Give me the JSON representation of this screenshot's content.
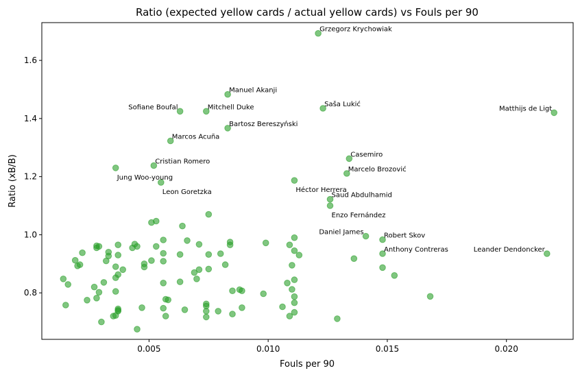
{
  "chart_data": {
    "type": "scatter",
    "title": "Ratio (expected yellow cards / actual yellow cards) vs Fouls per 90",
    "xlabel": "Fouls per 90",
    "ylabel": "Ratio (xB/B)",
    "xlim": [
      0.0005,
      0.0228
    ],
    "ylim": [
      0.64,
      1.73
    ],
    "xticks": [
      0.005,
      0.01,
      0.015,
      0.02
    ],
    "xtick_labels": [
      "0.005",
      "0.010",
      "0.015",
      "0.020"
    ],
    "yticks": [
      0.8,
      1.0,
      1.2,
      1.4,
      1.6
    ],
    "ytick_labels": [
      "0.8",
      "1.0",
      "1.2",
      "1.4",
      "1.6"
    ],
    "grid": false,
    "marker_color": "#2ca02c",
    "marker_opacity": 0.6,
    "labeled_points": [
      {
        "x": 0.0121,
        "y": 1.693,
        "label": "Grzegorz Krychowiak",
        "align": "start"
      },
      {
        "x": 0.0083,
        "y": 1.483,
        "label": "Manuel Akanji",
        "align": "start"
      },
      {
        "x": 0.0123,
        "y": 1.435,
        "label": "Saša Lukić",
        "align": "start"
      },
      {
        "x": 0.0063,
        "y": 1.425,
        "label": "Sofiane Boufal",
        "align": "end"
      },
      {
        "x": 0.0074,
        "y": 1.425,
        "label": "Mitchell Duke",
        "align": "start"
      },
      {
        "x": 0.022,
        "y": 1.42,
        "label": "Matthijs de Ligt",
        "align": "end"
      },
      {
        "x": 0.0083,
        "y": 1.367,
        "label": "Bartosz Bereszyński",
        "align": "start"
      },
      {
        "x": 0.0059,
        "y": 1.323,
        "label": "Marcos Acuña",
        "align": "start"
      },
      {
        "x": 0.0134,
        "y": 1.262,
        "label": "Casemiro",
        "align": "start"
      },
      {
        "x": 0.0052,
        "y": 1.238,
        "label": "Cristian Romero",
        "align": "start"
      },
      {
        "x": 0.0036,
        "y": 1.23,
        "label": "Jung Woo-young",
        "align": "start",
        "below": true
      },
      {
        "x": 0.0133,
        "y": 1.211,
        "label": "Marcelo Brozović",
        "align": "start"
      },
      {
        "x": 0.0111,
        "y": 1.187,
        "label": "Héctor Herrera",
        "align": "start",
        "below": true
      },
      {
        "x": 0.0055,
        "y": 1.18,
        "label": "Leon Goretzka",
        "align": "start",
        "below": true
      },
      {
        "x": 0.0126,
        "y": 1.122,
        "label": "Saud Abdulhamid",
        "align": "start"
      },
      {
        "x": 0.0126,
        "y": 1.1,
        "label": "Enzo Fernández",
        "align": "start",
        "below": true
      },
      {
        "x": 0.0141,
        "y": 0.995,
        "label": "Daniel James",
        "align": "end"
      },
      {
        "x": 0.0148,
        "y": 0.983,
        "label": "Robert Skov",
        "align": "start"
      },
      {
        "x": 0.0148,
        "y": 0.935,
        "label": "Anthony Contreras",
        "align": "start"
      },
      {
        "x": 0.0217,
        "y": 0.935,
        "label": "Leander Dendoncker",
        "align": "end"
      }
    ],
    "points": [
      {
        "x": 0.0121,
        "y": 1.693
      },
      {
        "x": 0.0083,
        "y": 1.483
      },
      {
        "x": 0.0123,
        "y": 1.435
      },
      {
        "x": 0.0063,
        "y": 1.425
      },
      {
        "x": 0.0074,
        "y": 1.425
      },
      {
        "x": 0.022,
        "y": 1.42
      },
      {
        "x": 0.0083,
        "y": 1.367
      },
      {
        "x": 0.0059,
        "y": 1.323
      },
      {
        "x": 0.0134,
        "y": 1.262
      },
      {
        "x": 0.0052,
        "y": 1.238
      },
      {
        "x": 0.0036,
        "y": 1.23
      },
      {
        "x": 0.0133,
        "y": 1.211
      },
      {
        "x": 0.0111,
        "y": 1.187
      },
      {
        "x": 0.0055,
        "y": 1.18
      },
      {
        "x": 0.0126,
        "y": 1.122
      },
      {
        "x": 0.0126,
        "y": 1.1
      },
      {
        "x": 0.0141,
        "y": 0.995
      },
      {
        "x": 0.0148,
        "y": 0.983
      },
      {
        "x": 0.0148,
        "y": 0.935
      },
      {
        "x": 0.0217,
        "y": 0.935
      },
      {
        "x": 0.0075,
        "y": 1.07
      },
      {
        "x": 0.0053,
        "y": 1.047
      },
      {
        "x": 0.0051,
        "y": 1.042
      },
      {
        "x": 0.0064,
        "y": 1.03
      },
      {
        "x": 0.0111,
        "y": 0.99
      },
      {
        "x": 0.0056,
        "y": 0.982
      },
      {
        "x": 0.0066,
        "y": 0.98
      },
      {
        "x": 0.0084,
        "y": 0.975
      },
      {
        "x": 0.0099,
        "y": 0.972
      },
      {
        "x": 0.0084,
        "y": 0.965
      },
      {
        "x": 0.0071,
        "y": 0.967
      },
      {
        "x": 0.0109,
        "y": 0.965
      },
      {
        "x": 0.0037,
        "y": 0.965
      },
      {
        "x": 0.0044,
        "y": 0.968
      },
      {
        "x": 0.0028,
        "y": 0.962
      },
      {
        "x": 0.0029,
        "y": 0.96
      },
      {
        "x": 0.0053,
        "y": 0.96
      },
      {
        "x": 0.0045,
        "y": 0.96
      },
      {
        "x": 0.0043,
        "y": 0.955
      },
      {
        "x": 0.0028,
        "y": 0.955
      },
      {
        "x": 0.0111,
        "y": 0.945
      },
      {
        "x": 0.0022,
        "y": 0.938
      },
      {
        "x": 0.0033,
        "y": 0.94
      },
      {
        "x": 0.0056,
        "y": 0.936
      },
      {
        "x": 0.0063,
        "y": 0.932
      },
      {
        "x": 0.0075,
        "y": 0.932
      },
      {
        "x": 0.008,
        "y": 0.935
      },
      {
        "x": 0.0113,
        "y": 0.93
      },
      {
        "x": 0.0033,
        "y": 0.927
      },
      {
        "x": 0.0037,
        "y": 0.93
      },
      {
        "x": 0.0136,
        "y": 0.918
      },
      {
        "x": 0.0019,
        "y": 0.912
      },
      {
        "x": 0.0032,
        "y": 0.91
      },
      {
        "x": 0.0051,
        "y": 0.911
      },
      {
        "x": 0.0056,
        "y": 0.909
      },
      {
        "x": 0.0021,
        "y": 0.897
      },
      {
        "x": 0.0048,
        "y": 0.9
      },
      {
        "x": 0.0082,
        "y": 0.897
      },
      {
        "x": 0.011,
        "y": 0.895
      },
      {
        "x": 0.002,
        "y": 0.893
      },
      {
        "x": 0.0036,
        "y": 0.89
      },
      {
        "x": 0.0048,
        "y": 0.889
      },
      {
        "x": 0.0148,
        "y": 0.887
      },
      {
        "x": 0.0039,
        "y": 0.88
      },
      {
        "x": 0.0071,
        "y": 0.88
      },
      {
        "x": 0.0075,
        "y": 0.882
      },
      {
        "x": 0.0069,
        "y": 0.87
      },
      {
        "x": 0.0037,
        "y": 0.863
      },
      {
        "x": 0.0153,
        "y": 0.86
      },
      {
        "x": 0.0036,
        "y": 0.852
      },
      {
        "x": 0.0014,
        "y": 0.848
      },
      {
        "x": 0.007,
        "y": 0.848
      },
      {
        "x": 0.0111,
        "y": 0.845
      },
      {
        "x": 0.0031,
        "y": 0.836
      },
      {
        "x": 0.0056,
        "y": 0.834
      },
      {
        "x": 0.0063,
        "y": 0.838
      },
      {
        "x": 0.0108,
        "y": 0.834
      },
      {
        "x": 0.0016,
        "y": 0.829
      },
      {
        "x": 0.0027,
        "y": 0.82
      },
      {
        "x": 0.0085,
        "y": 0.807
      },
      {
        "x": 0.0088,
        "y": 0.811
      },
      {
        "x": 0.0089,
        "y": 0.807
      },
      {
        "x": 0.0036,
        "y": 0.805
      },
      {
        "x": 0.0029,
        "y": 0.802
      },
      {
        "x": 0.011,
        "y": 0.812
      },
      {
        "x": 0.0098,
        "y": 0.797
      },
      {
        "x": 0.0111,
        "y": 0.787
      },
      {
        "x": 0.0168,
        "y": 0.788
      },
      {
        "x": 0.0028,
        "y": 0.782
      },
      {
        "x": 0.0057,
        "y": 0.778
      },
      {
        "x": 0.0058,
        "y": 0.776
      },
      {
        "x": 0.0024,
        "y": 0.775
      },
      {
        "x": 0.0111,
        "y": 0.766
      },
      {
        "x": 0.0074,
        "y": 0.762
      },
      {
        "x": 0.0015,
        "y": 0.758
      },
      {
        "x": 0.0074,
        "y": 0.755
      },
      {
        "x": 0.0106,
        "y": 0.752
      },
      {
        "x": 0.0047,
        "y": 0.749
      },
      {
        "x": 0.0056,
        "y": 0.747
      },
      {
        "x": 0.0089,
        "y": 0.749
      },
      {
        "x": 0.0037,
        "y": 0.745
      },
      {
        "x": 0.0065,
        "y": 0.742
      },
      {
        "x": 0.0037,
        "y": 0.74
      },
      {
        "x": 0.0037,
        "y": 0.737
      },
      {
        "x": 0.0079,
        "y": 0.737
      },
      {
        "x": 0.0111,
        "y": 0.733
      },
      {
        "x": 0.0074,
        "y": 0.737
      },
      {
        "x": 0.0085,
        "y": 0.727
      },
      {
        "x": 0.0035,
        "y": 0.72
      },
      {
        "x": 0.0109,
        "y": 0.72
      },
      {
        "x": 0.0057,
        "y": 0.72
      },
      {
        "x": 0.0036,
        "y": 0.722
      },
      {
        "x": 0.0074,
        "y": 0.717
      },
      {
        "x": 0.0129,
        "y": 0.711
      },
      {
        "x": 0.003,
        "y": 0.7
      },
      {
        "x": 0.0045,
        "y": 0.675
      }
    ]
  }
}
